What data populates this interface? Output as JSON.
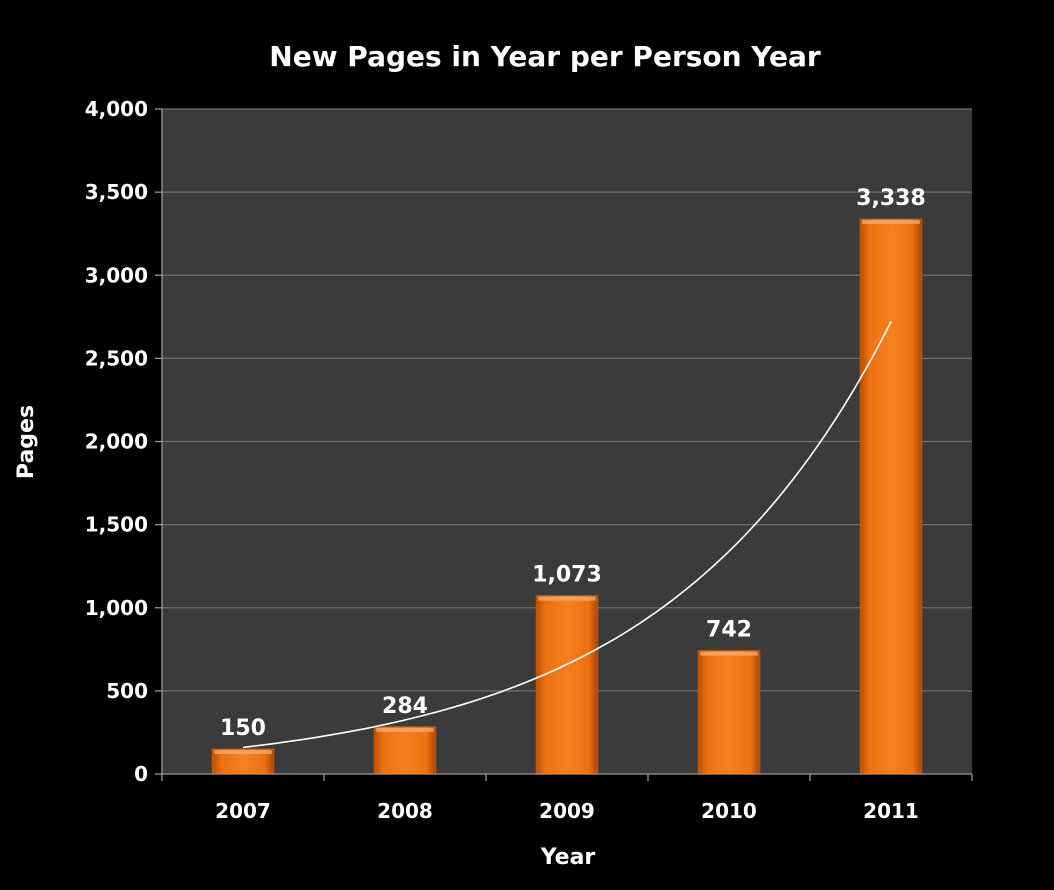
{
  "chart_data": {
    "type": "bar",
    "title": "New Pages in Year per Person Year",
    "xlabel": "Year",
    "ylabel": "Pages",
    "categories": [
      "2007",
      "2008",
      "2009",
      "2010",
      "2011"
    ],
    "values": [
      150,
      284,
      1073,
      742,
      3338
    ],
    "value_labels": [
      "150",
      "284",
      "1,073",
      "742",
      "3,338"
    ],
    "ylim": [
      0,
      4000
    ],
    "yticks": [
      0,
      500,
      1000,
      1500,
      2000,
      2500,
      3000,
      3500,
      4000
    ],
    "ytick_labels": [
      "0",
      "500",
      "1,000",
      "1,500",
      "2,000",
      "2,500",
      "3,000",
      "3,500",
      "4,000"
    ],
    "grid": true,
    "trendline": {
      "type": "exponential",
      "values": [
        160,
        330,
        690,
        1390,
        2720
      ]
    },
    "colors": {
      "background": "#000000",
      "plot_area": "#3b3b3b",
      "bar": "#f07010",
      "trendline": "#ffffff",
      "gridline": "#6e6e6e"
    }
  }
}
